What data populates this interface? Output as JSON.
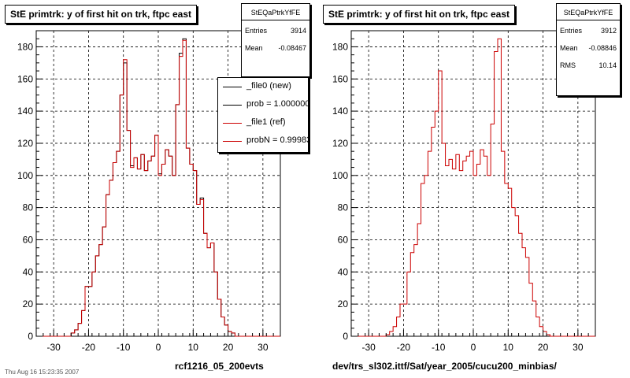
{
  "footer_text": "Thu Aug 16 15:23:35 2007",
  "panels": [
    {
      "title": "StE primtrk: y of first hit on trk, ftpc east",
      "stats": {
        "name": "StEQaPtrkYfFE",
        "rows": [
          {
            "label": "Entries",
            "value": "3914"
          },
          {
            "label": "Mean",
            "value": "-0.08467"
          }
        ]
      },
      "legend": [
        {
          "label": "_file0 (new)",
          "color": "#000000"
        },
        {
          "label": "prob = 1.000000",
          "color": "#000000"
        },
        {
          "label": "_file1 (ref)",
          "color": "#cc0000"
        },
        {
          "label": "probN = 0.99983",
          "color": "#cc0000"
        }
      ],
      "caption": "rcf1216_05_200evts"
    },
    {
      "title": "StE primtrk: y of first hit on trk, ftpc east",
      "stats": {
        "name": "StEQaPtrkYfFE",
        "rows": [
          {
            "label": "Entries",
            "value": "3912"
          },
          {
            "label": "Mean",
            "value": "-0.08846"
          },
          {
            "label": "RMS",
            "value": "10.14"
          }
        ]
      },
      "legend": [],
      "caption": "dev/trs_sl302.ittf/Sat/year_2005/cucu200_minbias/"
    }
  ],
  "chart_data": [
    {
      "type": "step-histogram",
      "title": "StE primtrk: y of first hit on trk, ftpc east",
      "xlim": [
        -35,
        35
      ],
      "ylim": [
        0,
        190
      ],
      "xticks": [
        -30,
        -20,
        -10,
        0,
        10,
        20,
        30
      ],
      "yticks": [
        0,
        20,
        40,
        60,
        80,
        100,
        120,
        140,
        160,
        180
      ],
      "grid": true,
      "bin_edges_start": -35,
      "bin_width": 1,
      "series": [
        {
          "name": "_file0 (new)",
          "color": "#000000",
          "values": [
            0,
            0,
            0,
            0,
            0,
            0,
            0,
            0,
            0,
            0,
            2,
            4,
            8,
            16,
            31,
            31,
            40,
            50,
            57,
            68,
            88,
            97,
            108,
            115,
            150,
            170,
            128,
            106,
            111,
            104,
            113,
            103,
            109,
            112,
            125,
            101,
            107,
            116,
            112,
            100,
            144,
            176,
            185,
            117,
            107,
            103,
            82,
            86,
            64,
            55,
            58,
            40,
            23,
            12,
            7,
            3,
            2,
            0,
            0,
            0,
            0,
            0,
            0,
            0,
            0,
            0,
            0,
            0,
            0,
            0
          ]
        },
        {
          "name": "_file1 (ref)",
          "color": "#cc0000",
          "values": [
            0,
            0,
            0,
            0,
            0,
            0,
            0,
            0,
            0,
            0,
            2,
            4,
            8,
            16,
            31,
            31,
            40,
            50,
            57,
            68,
            88,
            97,
            108,
            115,
            150,
            172,
            128,
            105,
            111,
            104,
            113,
            103,
            109,
            112,
            125,
            100,
            107,
            116,
            112,
            100,
            144,
            174,
            184,
            117,
            107,
            103,
            82,
            85,
            64,
            55,
            58,
            40,
            23,
            12,
            7,
            3,
            2,
            0,
            0,
            0,
            0,
            0,
            0,
            0,
            0,
            0,
            0,
            0,
            0,
            0
          ]
        }
      ]
    },
    {
      "type": "step-histogram",
      "title": "StE primtrk: y of first hit on trk, ftpc east",
      "xlim": [
        -35,
        35
      ],
      "ylim": [
        0,
        190
      ],
      "xticks": [
        -30,
        -20,
        -10,
        0,
        10,
        20,
        30
      ],
      "yticks": [
        0,
        20,
        40,
        60,
        80,
        100,
        120,
        140,
        160,
        180
      ],
      "grid": true,
      "bin_edges_start": -35,
      "bin_width": 1,
      "series": [
        {
          "name": "",
          "color": "#cc0000",
          "values": [
            0,
            0,
            0,
            0,
            0,
            0,
            0,
            0,
            0,
            0,
            1,
            3,
            6,
            12,
            20,
            20,
            40,
            52,
            57,
            70,
            95,
            100,
            115,
            130,
            140,
            165,
            120,
            106,
            110,
            104,
            113,
            103,
            109,
            112,
            115,
            100,
            107,
            116,
            112,
            100,
            132,
            177,
            185,
            115,
            95,
            92,
            80,
            75,
            64,
            55,
            49,
            33,
            22,
            12,
            6,
            3,
            1,
            0,
            0,
            0,
            0,
            0,
            0,
            0,
            0,
            0,
            0,
            0,
            0,
            0
          ]
        }
      ]
    }
  ]
}
